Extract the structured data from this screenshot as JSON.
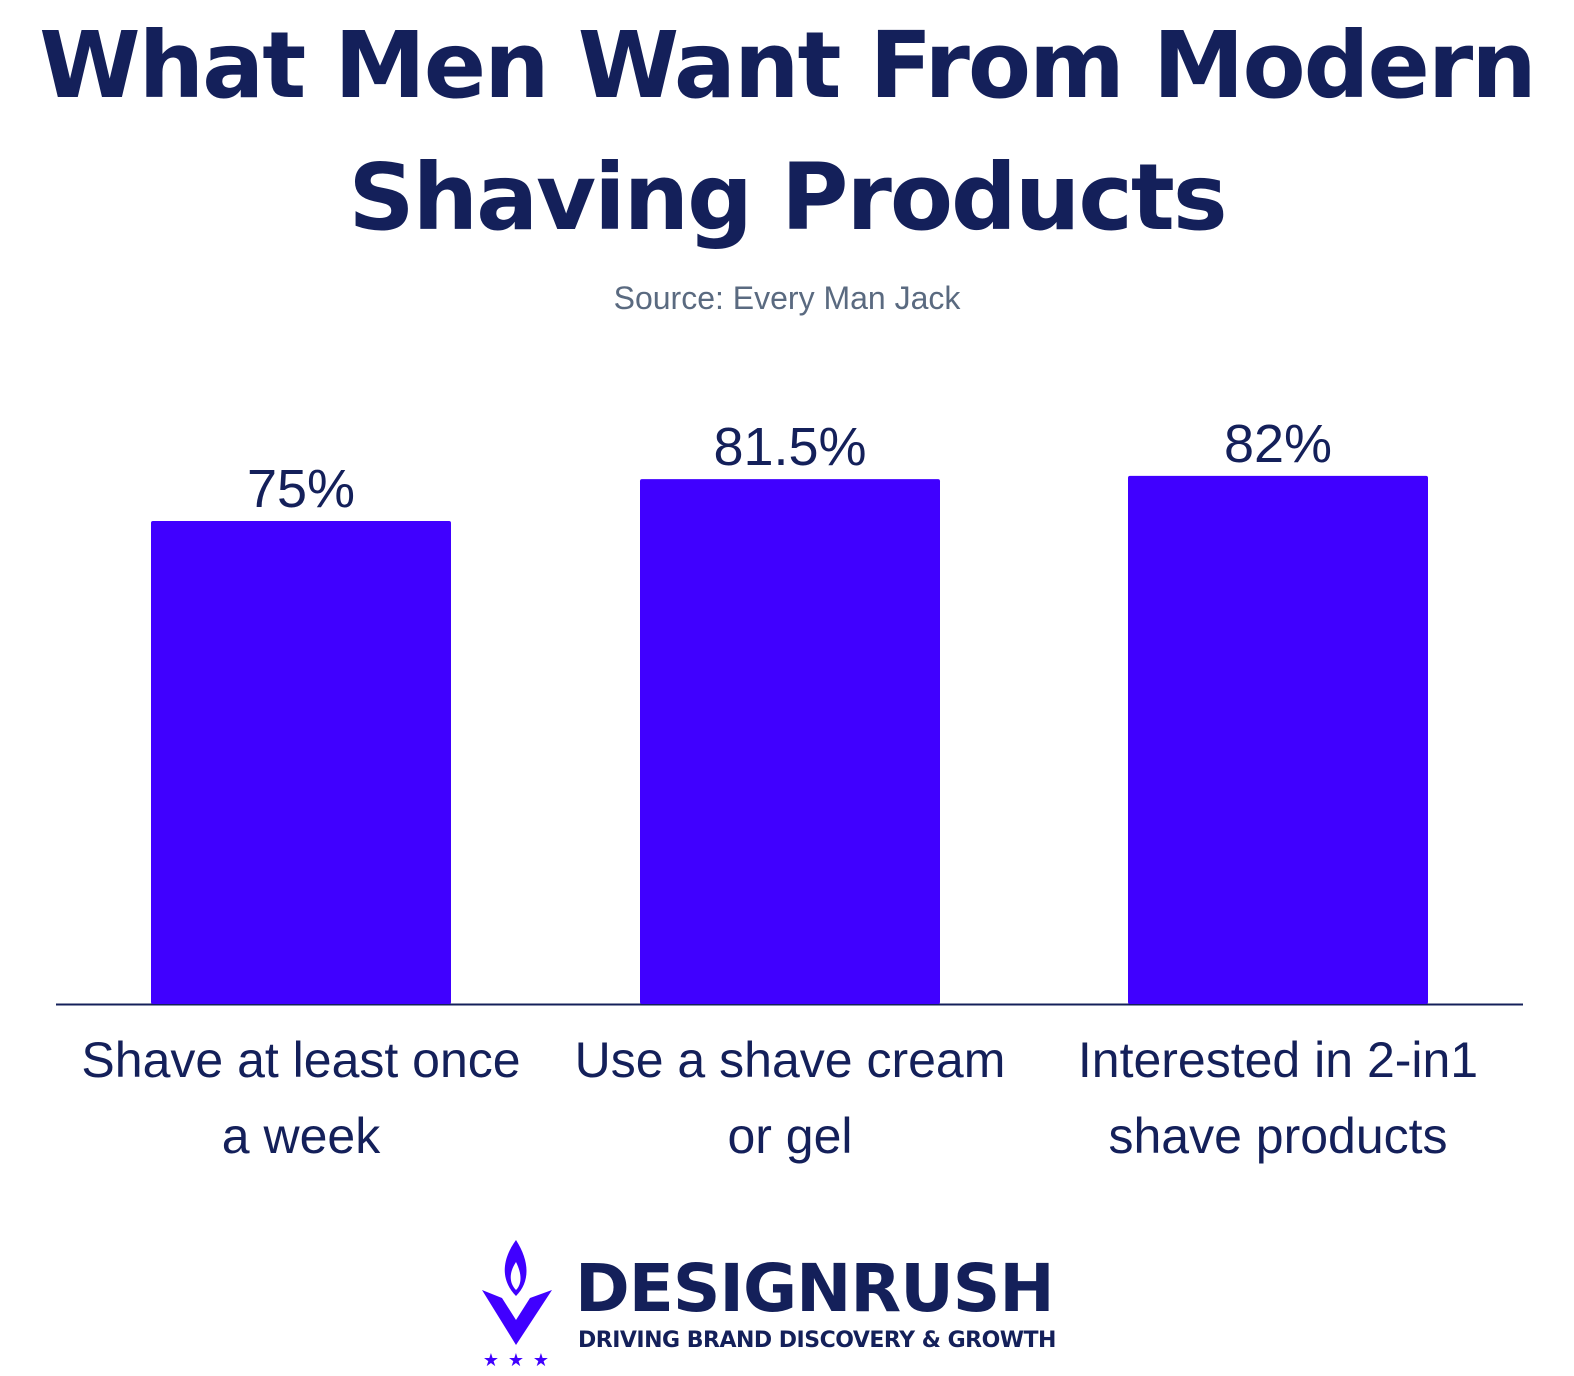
{
  "chart_data": {
    "type": "bar",
    "title": "What Men Want From Modern Shaving Products",
    "subtitle": "Source: Every Man Jack",
    "categories": [
      "Shave at least once a week",
      "Use a shave cream or gel",
      "Interested in 2-in1 shave products"
    ],
    "values": [
      75,
      81.5,
      82
    ],
    "value_labels": [
      "75%",
      "81.5%",
      "82%"
    ],
    "color": "#4000ff"
  },
  "brand": {
    "name": "DESIGNRUSH",
    "tagline": "DRIVING BRAND DISCOVERY & GROWTH"
  }
}
